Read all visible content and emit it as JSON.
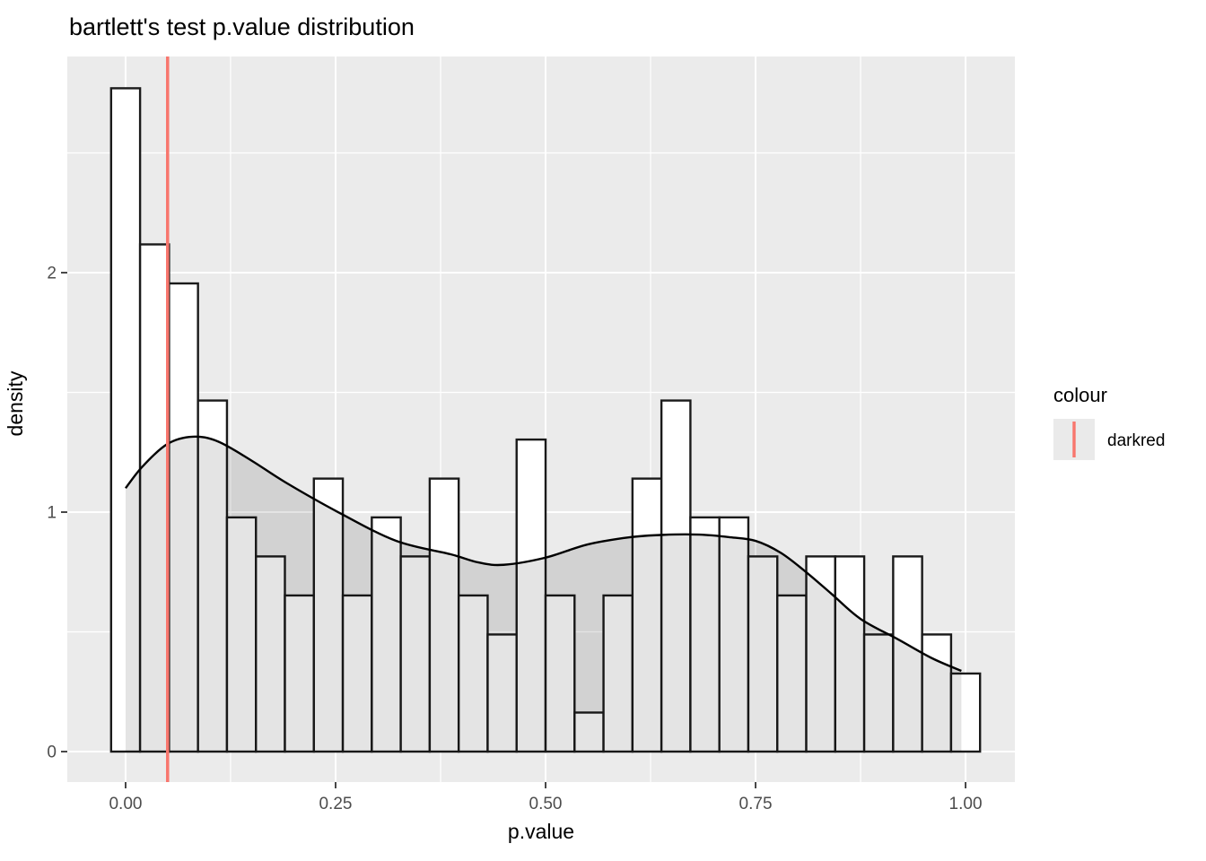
{
  "title": "bartlett's test p.value distribution",
  "chart_data": {
    "type": "histogram",
    "title": "bartlett's test p.value distribution",
    "xlabel": "p.value",
    "ylabel": "density",
    "grid": true,
    "legend_position": "right",
    "x_ticks": {
      "labels": [
        "0.00",
        "0.25",
        "0.50",
        "0.75",
        "1.00"
      ],
      "values": [
        0,
        0.25,
        0.5,
        0.75,
        1.0
      ]
    },
    "y_ticks": {
      "labels": [
        "0",
        "1",
        "2"
      ],
      "values": [
        0,
        1,
        2
      ]
    },
    "x_minor": [
      0.125,
      0.375,
      0.625,
      0.875
    ],
    "y_minor": [
      0.5,
      1.5,
      2.5
    ],
    "xlim": [
      -0.0694,
      1.0587
    ],
    "ylim": [
      -0.1273,
      2.9026
    ],
    "bins": {
      "start": -0.017241,
      "width": 0.034483,
      "densities": [
        2.77,
        2.118,
        1.955,
        1.466,
        0.978,
        0.815,
        0.652,
        1.14,
        0.652,
        0.978,
        0.815,
        1.14,
        0.652,
        0.489,
        1.303,
        0.652,
        0.163,
        0.652,
        1.14,
        1.466,
        0.978,
        0.978,
        0.815,
        0.652,
        0.815,
        0.815,
        0.489,
        0.815,
        0.489,
        0.326
      ]
    },
    "density_curve": [
      [
        0.0,
        1.1
      ],
      [
        0.02,
        1.19
      ],
      [
        0.05,
        1.285
      ],
      [
        0.08,
        1.315
      ],
      [
        0.11,
        1.295
      ],
      [
        0.15,
        1.215
      ],
      [
        0.19,
        1.125
      ],
      [
        0.253,
        1.0
      ],
      [
        0.322,
        0.88
      ],
      [
        0.387,
        0.824
      ],
      [
        0.42,
        0.79
      ],
      [
        0.45,
        0.78
      ],
      [
        0.5,
        0.81
      ],
      [
        0.55,
        0.865
      ],
      [
        0.6,
        0.895
      ],
      [
        0.64,
        0.905
      ],
      [
        0.683,
        0.906
      ],
      [
        0.72,
        0.895
      ],
      [
        0.75,
        0.88
      ],
      [
        0.78,
        0.83
      ],
      [
        0.81,
        0.75
      ],
      [
        0.84,
        0.66
      ],
      [
        0.875,
        0.554
      ],
      [
        0.92,
        0.468
      ],
      [
        0.96,
        0.39
      ],
      [
        0.995,
        0.337
      ]
    ],
    "vline": {
      "x": 0.05,
      "color": "#F8766D"
    },
    "legend": {
      "title": "colour",
      "entries": [
        {
          "label": "darkred",
          "color": "#F8766D"
        }
      ]
    }
  },
  "colors": {
    "panel_bg": "#EBEBEB",
    "grid": "#FFFFFF",
    "bar_fill": "#FFFFFF",
    "bar_stroke": "#1A1A1A",
    "density_fill": "rgba(0,0,0,0.105)",
    "density_stroke": "#000000",
    "accent_red": "#F8766D",
    "tick_text": "#4D4D4D",
    "axis_text": "#000000",
    "legend_key_bg": "#EAEAEA"
  }
}
